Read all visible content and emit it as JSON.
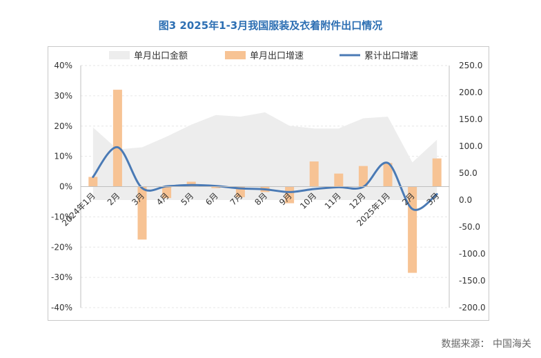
{
  "title": "图3 2025年1-3月我国服装及衣着附件出口情况",
  "source": "数据来源：  中国海关",
  "chart_data": {
    "type": "bar",
    "title": "图3 2025年1-3月我国服装及衣着附件出口情况",
    "categories": [
      "2024年1月",
      "2月",
      "3月",
      "4月",
      "5月",
      "6月",
      "7月",
      "8月",
      "9月",
      "10月",
      "11月",
      "12月",
      "2025年1月",
      "2月",
      "3月"
    ],
    "series": [
      {
        "name": "单月出口金额",
        "kind": "area",
        "axis": "right",
        "values": [
          135,
          94,
          98,
          118,
          140,
          158,
          155,
          163,
          138,
          133,
          133,
          152,
          155,
          70,
          112
        ]
      },
      {
        "name": "单月出口增速",
        "kind": "bar",
        "axis": "left",
        "values": [
          3.2,
          32,
          -17.5,
          -3.8,
          1.6,
          -0.5,
          -3.5,
          -1.8,
          -5.5,
          8.3,
          4.3,
          6.8,
          7.8,
          -28.5,
          9.3
        ]
      },
      {
        "name": "累计出口增速",
        "kind": "line",
        "axis": "left",
        "values": [
          3.2,
          13,
          -0.5,
          0.1,
          0.5,
          0.2,
          -0.6,
          -0.9,
          -1.8,
          -0.8,
          -0.2,
          -0.1,
          7.8,
          -7.4,
          -2.5
        ]
      }
    ],
    "y_left": {
      "min": -40,
      "max": 40,
      "step": 10,
      "ticks": [
        "-40%",
        "-30%",
        "-20%",
        "-10%",
        "0%",
        "10%",
        "20%",
        "30%",
        "40%"
      ]
    },
    "y_right": {
      "min": -200,
      "max": 250,
      "step": 50,
      "ticks": [
        "-200.0",
        "-150.0",
        "-100.0",
        "-50.0",
        "0.0",
        "50.0",
        "100.0",
        "150.0",
        "200.0",
        "250.0"
      ]
    },
    "grid": true,
    "legend_position": "top",
    "colors": {
      "area": "#ededed",
      "bar": "#f7c394",
      "line": "#4a7ab5",
      "grid": "#e6e6e6",
      "axis": "#bfbfbf"
    }
  }
}
